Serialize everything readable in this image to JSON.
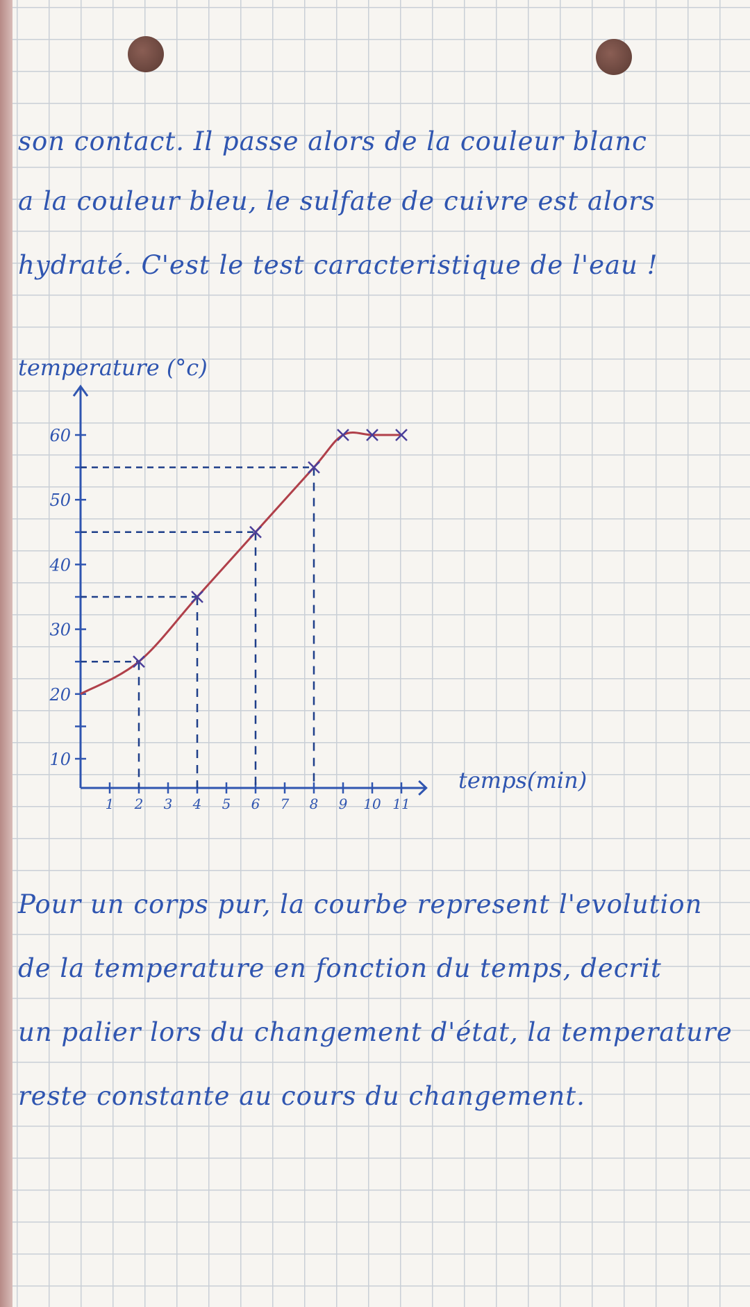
{
  "notes_top": [
    "son contact. Il passe alors de la couleur blanc",
    "a la couleur bleu, le sulfate de cuivre est alors",
    "hydraté. C'est le test caracteristique de l'eau !"
  ],
  "notes_bottom": [
    "Pour un corps pur, la courbe represent l'evolution",
    "de la temperature en fonction du temps, decrit",
    "un palier lors du changement d'état, la temperature",
    "reste constante au cours du changement."
  ],
  "colors": {
    "ink": "#2f55b0",
    "curve": "#b0404a",
    "grid": "#c9cfd6"
  },
  "chart_data": {
    "type": "line",
    "xlabel": "temps(min)",
    "ylabel": "temperature (°c)",
    "x_ticks": [
      1,
      2,
      3,
      4,
      5,
      6,
      7,
      8,
      9,
      10,
      11
    ],
    "y_ticks": [
      10,
      20,
      30,
      40,
      50,
      60
    ],
    "xlim": [
      0,
      11.5
    ],
    "ylim": [
      5.5,
      63
    ],
    "grid": true,
    "points": [
      {
        "x": 0,
        "y": 20
      },
      {
        "x": 2,
        "y": 25
      },
      {
        "x": 4,
        "y": 35
      },
      {
        "x": 6,
        "y": 45
      },
      {
        "x": 8,
        "y": 55
      },
      {
        "x": 9,
        "y": 60
      },
      {
        "x": 10,
        "y": 60
      },
      {
        "x": 11,
        "y": 60
      }
    ],
    "guide_lines_at_x": [
      2,
      4,
      6,
      8
    ]
  }
}
